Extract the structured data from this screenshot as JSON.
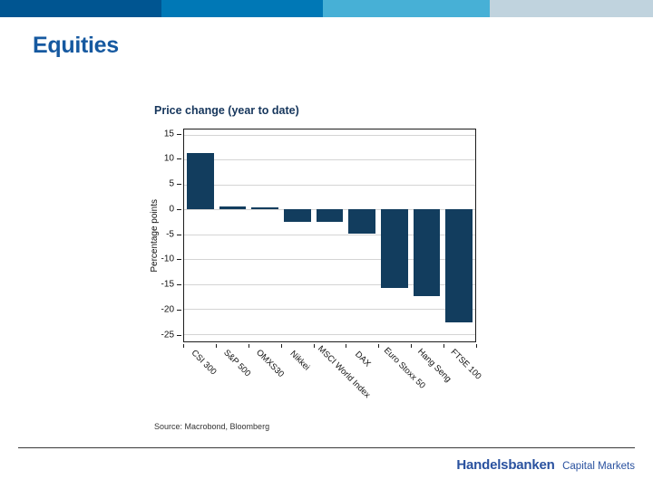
{
  "slide": {
    "title": "Equities",
    "header_bar": {
      "colors": [
        "#005591",
        "#0078b6",
        "#47b0d6",
        "#c0d3de"
      ]
    },
    "footer": {
      "brand": "Handelsbanken",
      "brand_suffix": "Capital Markets"
    }
  },
  "chart_data": {
    "type": "bar",
    "title": "Price change (year to date)",
    "ylabel": "Percentage points",
    "categories": [
      "CSI 300",
      "S&P 500",
      "OMXS30",
      "Nikkei",
      "MSCI World Index",
      "DAX",
      "Euro Stoxx 50",
      "Hang Seng",
      "FTSE 100"
    ],
    "values": [
      11.2,
      0.5,
      0.3,
      -2.5,
      -2.6,
      -4.9,
      -15.7,
      -17.4,
      -22.7
    ],
    "yticks": [
      15,
      10,
      5,
      0,
      -5,
      -10,
      -15,
      -20,
      -25
    ],
    "ylim": [
      -26.5,
      16
    ],
    "grid": true,
    "legend": "none",
    "bar_color": "#123d5e",
    "grid_color": "#d4d4d4",
    "source": "Source: Macrobond, Bloomberg"
  }
}
